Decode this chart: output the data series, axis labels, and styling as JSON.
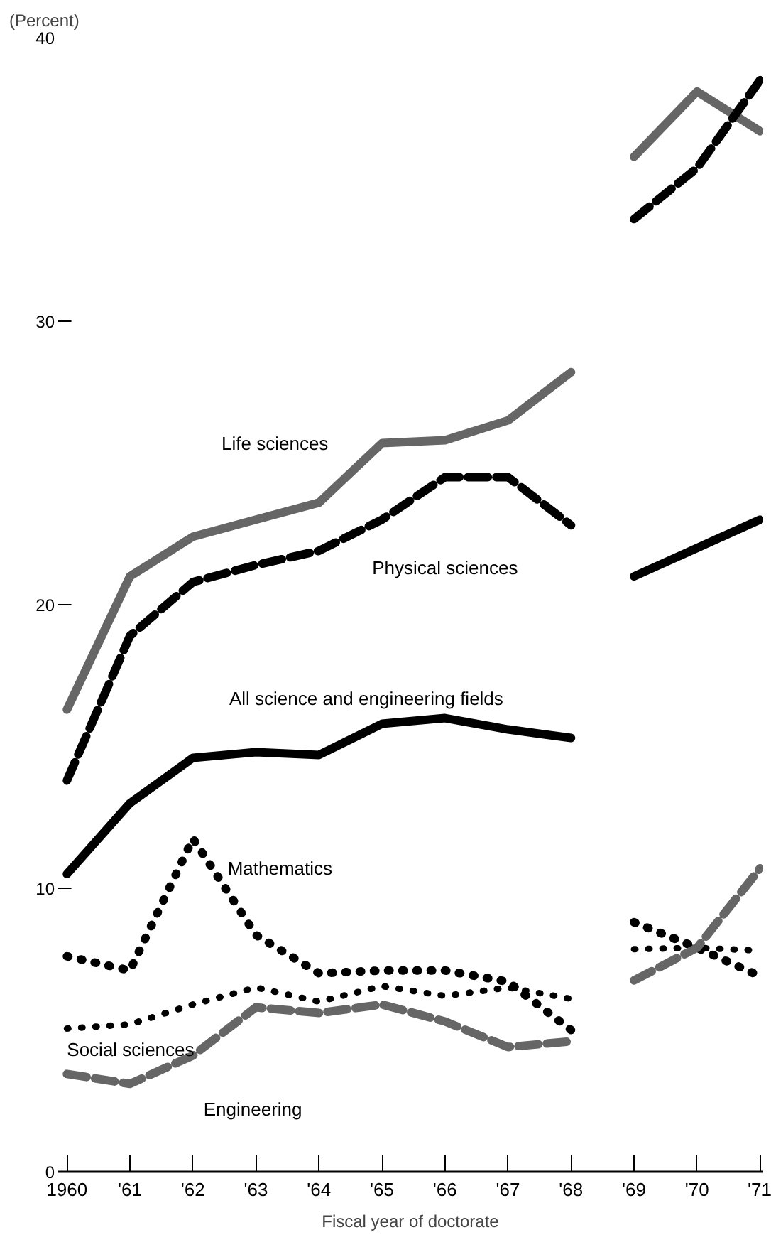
{
  "chart_data": {
    "type": "line",
    "ylabel": "(Percent)",
    "xlabel": "Fiscal year of doctorate",
    "x": [
      1960,
      1961,
      1962,
      1963,
      1964,
      1965,
      1966,
      1967,
      1968,
      1968.5,
      1969,
      1970,
      1971
    ],
    "xlim": [
      1959.85,
      1971.05
    ],
    "ylim": [
      0,
      40
    ],
    "yticks": [
      0,
      10,
      20,
      30,
      40
    ],
    "xticks": [
      1960,
      {
        "value": 1961,
        "label": "'61"
      },
      {
        "value": 1962,
        "label": "'62"
      },
      {
        "value": 1963,
        "label": "'63"
      },
      {
        "value": 1964,
        "label": "'64"
      },
      {
        "value": 1965,
        "label": "'65"
      },
      {
        "value": 1966,
        "label": "'66"
      },
      {
        "value": 1967,
        "label": "'67"
      },
      {
        "value": 1968,
        "label": "'68"
      },
      {
        "value": 1969,
        "label": "'69"
      },
      {
        "value": 1970,
        "label": "'70"
      },
      {
        "value": 1971,
        "label": "'71"
      }
    ],
    "grid": false,
    "legend": false,
    "series": [
      {
        "name": "Life sciences",
        "color": "#666666",
        "line_style": "solid",
        "values": [
          16.3,
          21.0,
          22.4,
          23.0,
          23.6,
          25.7,
          25.8,
          26.5,
          28.2,
          null,
          35.8,
          38.1,
          36.7
        ]
      },
      {
        "name": "Physical sciences",
        "color": "#000000",
        "line_style": "dashed",
        "values": [
          13.8,
          18.9,
          20.8,
          21.4,
          21.9,
          23.0,
          24.5,
          24.5,
          22.8,
          null,
          33.6,
          35.4,
          38.5
        ]
      },
      {
        "name": "All science and engineering fields",
        "color": "#000000",
        "line_style": "solid",
        "values": [
          10.5,
          13.0,
          14.6,
          14.8,
          14.7,
          15.8,
          16.0,
          15.6,
          15.3,
          null,
          21.0,
          22.0,
          23.0
        ]
      },
      {
        "name": "Mathematics",
        "color": "#000000",
        "line_style": "dotted",
        "values": [
          7.6,
          7.1,
          11.75,
          8.35,
          7.0,
          7.1,
          7.1,
          6.7,
          5.0,
          null,
          8.8,
          7.9,
          6.9
        ]
      },
      {
        "name": "Social sciences",
        "color": "#000000",
        "line_style": "dotted",
        "values": [
          5.05,
          5.2,
          5.9,
          6.5,
          6.0,
          6.55,
          6.2,
          6.5,
          6.1,
          null,
          7.85,
          7.9,
          7.8
        ]
      },
      {
        "name": "Engineering",
        "color": "#666666",
        "line_style": "dashed",
        "values": [
          3.45,
          3.1,
          4.1,
          5.8,
          5.6,
          5.9,
          5.3,
          4.4,
          4.6,
          null,
          6.75,
          7.9,
          10.7
        ]
      }
    ]
  }
}
